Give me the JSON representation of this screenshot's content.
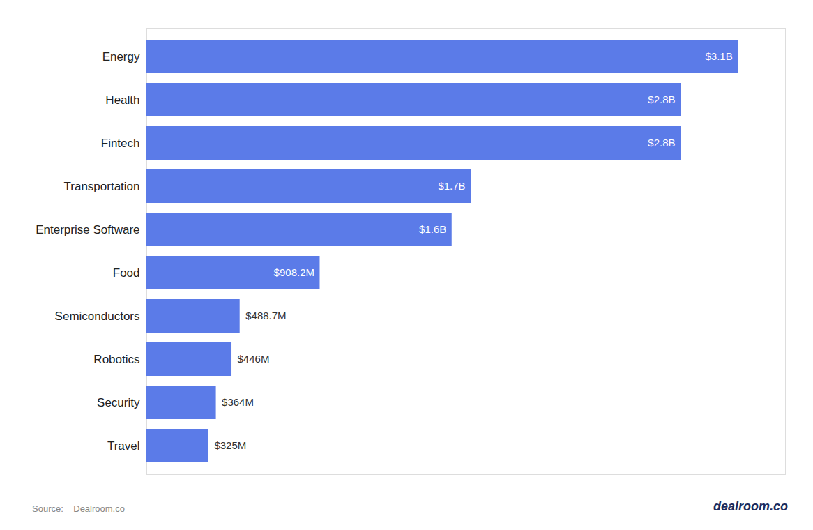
{
  "chart_data": {
    "type": "bar",
    "orientation": "horizontal",
    "categories": [
      "Energy",
      "Health",
      "Fintech",
      "Transportation",
      "Enterprise Software",
      "Food",
      "Semiconductors",
      "Robotics",
      "Security",
      "Travel"
    ],
    "values": [
      3100,
      2800,
      2800,
      1700,
      1600,
      908.2,
      488.7,
      446,
      364,
      325
    ],
    "value_labels": [
      "$3.1B",
      "$2.8B",
      "$2.8B",
      "$1.7B",
      "$1.6B",
      "$908.2M",
      "$488.7M",
      "$446M",
      "$364M",
      "$325M"
    ],
    "color": "#5b7be8",
    "data_labels": true,
    "tick_labels": "y",
    "grid": false,
    "xlim": [
      0,
      3348
    ],
    "annotations": [
      "Source:    Dealroom.co",
      "dealroom.co"
    ]
  }
}
